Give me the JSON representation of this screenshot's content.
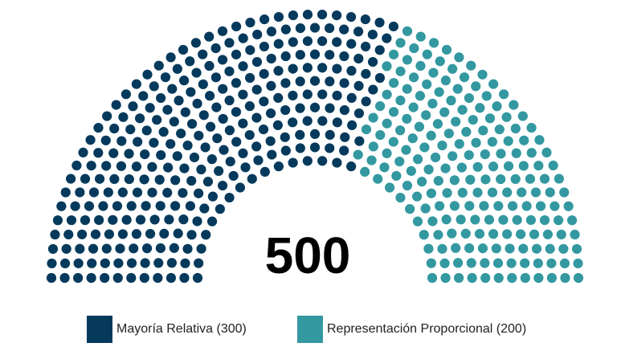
{
  "chart_data": {
    "type": "parliament",
    "total": 500,
    "total_label": "500",
    "series": [
      {
        "name": "Mayoría Relativa (300)",
        "value": 300,
        "color": "#063a5c"
      },
      {
        "name": "Representación Proporcional (200)",
        "value": 200,
        "color": "#3398a0"
      }
    ],
    "legend_position": "bottom"
  }
}
